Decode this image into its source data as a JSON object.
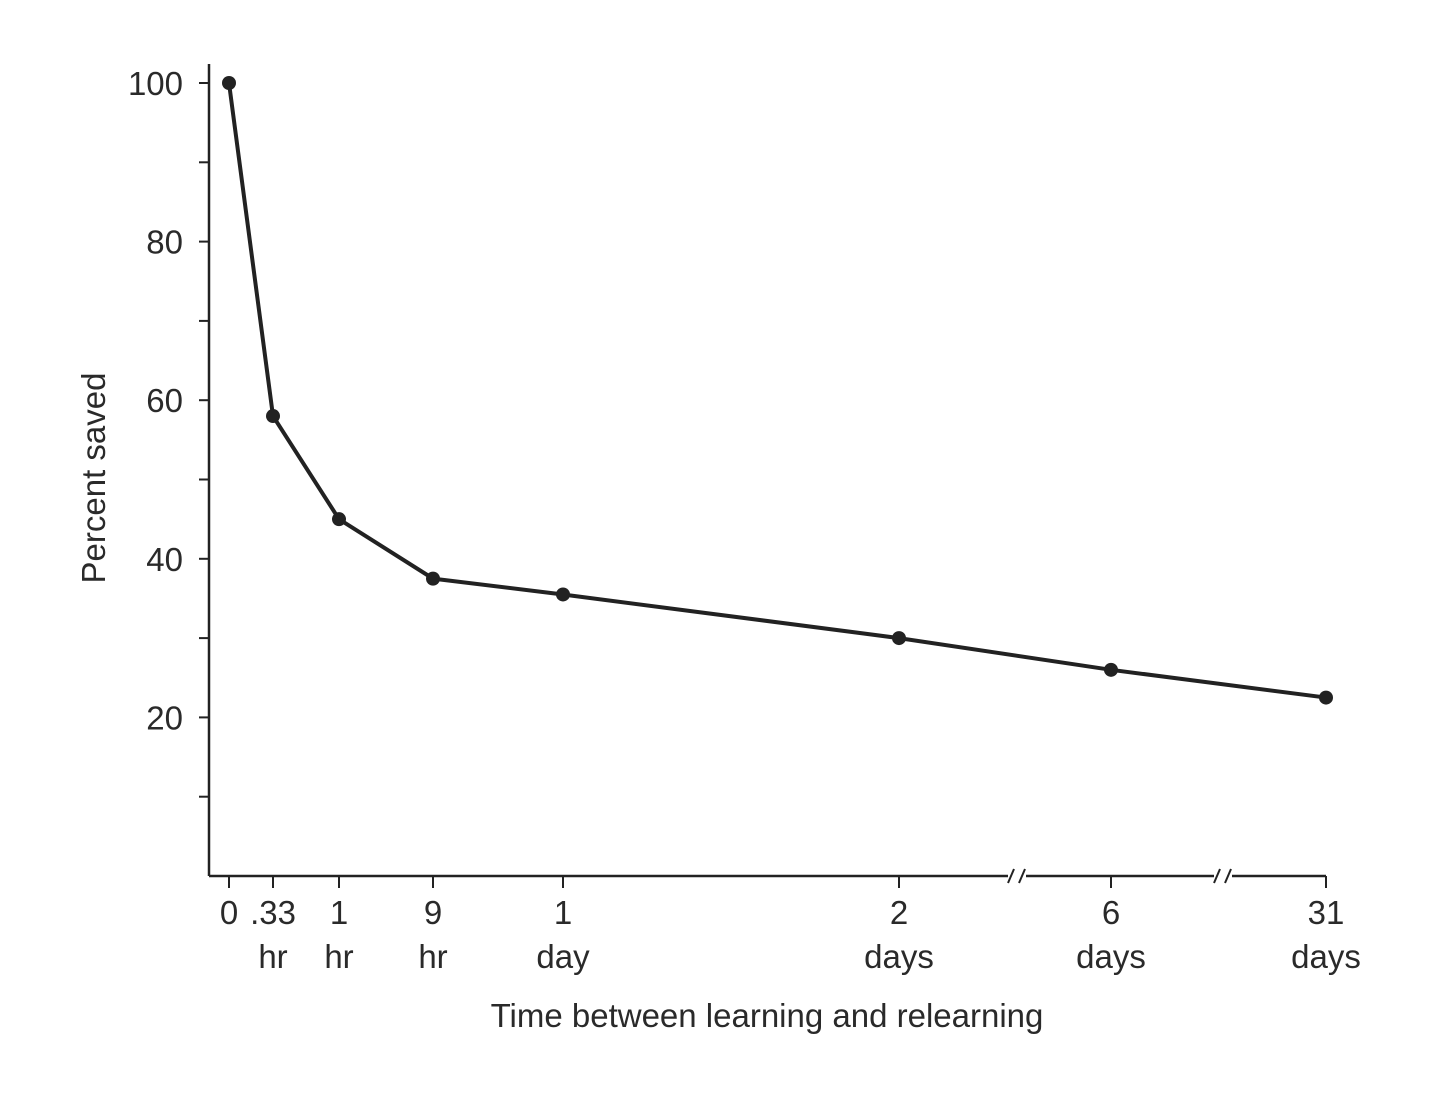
{
  "chart_data": {
    "type": "line",
    "title": "",
    "xlabel": "Time between learning and relearning",
    "ylabel": "Percent saved",
    "ylim": [
      0,
      100
    ],
    "yticks": [
      20,
      40,
      60,
      80,
      100
    ],
    "categories": [
      {
        "top": "0",
        "bottom": ""
      },
      {
        "top": ".33",
        "bottom": "hr"
      },
      {
        "top": "1",
        "bottom": "hr"
      },
      {
        "top": "9",
        "bottom": "hr"
      },
      {
        "top": "1",
        "bottom": "day"
      },
      {
        "top": "2",
        "bottom": "days"
      },
      {
        "top": "6",
        "bottom": "days"
      },
      {
        "top": "31",
        "bottom": "days"
      }
    ],
    "series": [
      {
        "values": [
          100,
          58,
          45,
          37.5,
          35.5,
          30,
          26,
          22.5
        ]
      }
    ],
    "axis_breaks": [
      "between 2 days and 6 days",
      "between 6 days and 31 days"
    ],
    "grid": false,
    "line_color": "#222222"
  }
}
